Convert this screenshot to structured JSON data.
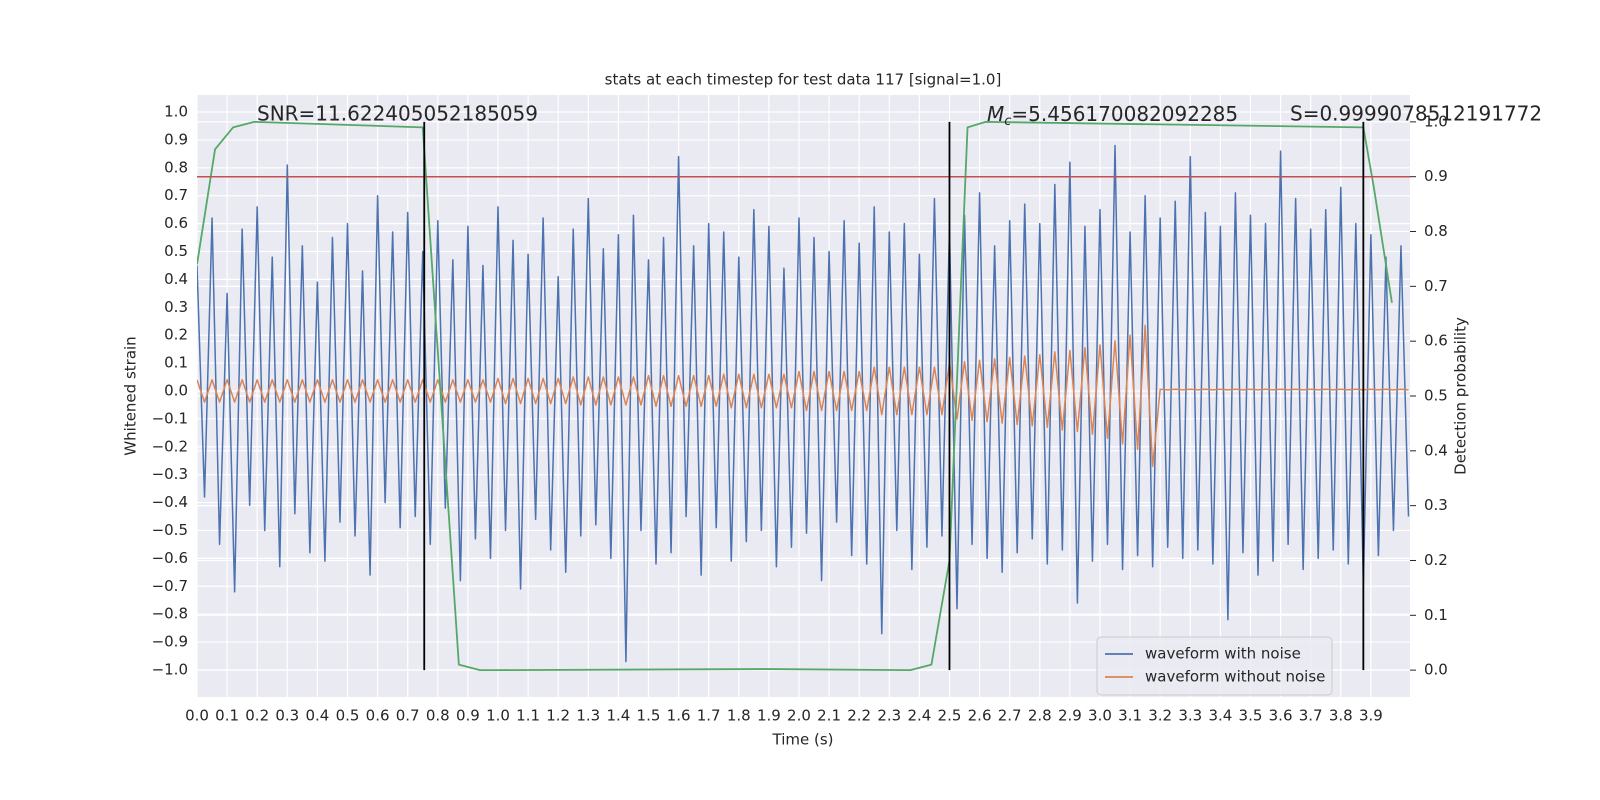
{
  "chart_data": {
    "type": "line",
    "title": "stats at each timestep for test data 117 [signal=1.0]",
    "x_label": "Time (s)",
    "y_label": "Whitened strain",
    "y2_label": "Detection probability",
    "annotations": [
      {
        "text": "SNR=11.622405052185059"
      },
      {
        "symbol": "M",
        "subscript": "c",
        "text": "=5.456170082092285"
      },
      {
        "text": "S=0.9999078512191772"
      }
    ],
    "xlim": [
      0,
      4.03
    ],
    "ylim": [
      -1.097,
      1.061
    ],
    "y2lim": [
      -0.049,
      1.049
    ],
    "xticks": [
      {
        "value": 0,
        "label": "0.0"
      },
      {
        "value": 0.1,
        "label": "0.1"
      },
      {
        "value": 0.2,
        "label": "0.2"
      },
      {
        "value": 0.3,
        "label": "0.3"
      },
      {
        "value": 0.4,
        "label": "0.4"
      },
      {
        "value": 0.5,
        "label": "0.5"
      },
      {
        "value": 0.6,
        "label": "0.6"
      },
      {
        "value": 0.7,
        "label": "0.7"
      },
      {
        "value": 0.8,
        "label": "0.8"
      },
      {
        "value": 0.9,
        "label": "0.9"
      },
      {
        "value": 1,
        "label": "1.0"
      },
      {
        "value": 1.1,
        "label": "1.1"
      },
      {
        "value": 1.2,
        "label": "1.2"
      },
      {
        "value": 1.3,
        "label": "1.3"
      },
      {
        "value": 1.4,
        "label": "1.4"
      },
      {
        "value": 1.5,
        "label": "1.5"
      },
      {
        "value": 1.6,
        "label": "1.6"
      },
      {
        "value": 1.7,
        "label": "1.7"
      },
      {
        "value": 1.8,
        "label": "1.8"
      },
      {
        "value": 1.9,
        "label": "1.9"
      },
      {
        "value": 2,
        "label": "2.0"
      },
      {
        "value": 2.1,
        "label": "2.1"
      },
      {
        "value": 2.2,
        "label": "2.2"
      },
      {
        "value": 2.3,
        "label": "2.3"
      },
      {
        "value": 2.4,
        "label": "2.4"
      },
      {
        "value": 2.5,
        "label": "2.5"
      },
      {
        "value": 2.6,
        "label": "2.6"
      },
      {
        "value": 2.7,
        "label": "2.7"
      },
      {
        "value": 2.8,
        "label": "2.8"
      },
      {
        "value": 2.9,
        "label": "2.9"
      },
      {
        "value": 3,
        "label": "3.0"
      },
      {
        "value": 3.1,
        "label": "3.1"
      },
      {
        "value": 3.2,
        "label": "3.2"
      },
      {
        "value": 3.3,
        "label": "3.3"
      },
      {
        "value": 3.4,
        "label": "3.4"
      },
      {
        "value": 3.5,
        "label": "3.5"
      },
      {
        "value": 3.6,
        "label": "3.6"
      },
      {
        "value": 3.7,
        "label": "3.7"
      },
      {
        "value": 3.8,
        "label": "3.8"
      },
      {
        "value": 3.9,
        "label": "3.9"
      }
    ],
    "yticks": [
      {
        "value": -1,
        "label": "−1.0"
      },
      {
        "value": -0.9,
        "label": "−0.9"
      },
      {
        "value": -0.8,
        "label": "−0.8"
      },
      {
        "value": -0.7,
        "label": "−0.7"
      },
      {
        "value": -0.6,
        "label": "−0.6"
      },
      {
        "value": -0.5,
        "label": "−0.5"
      },
      {
        "value": -0.4,
        "label": "−0.4"
      },
      {
        "value": -0.3,
        "label": "−0.3"
      },
      {
        "value": -0.2,
        "label": "−0.2"
      },
      {
        "value": -0.1,
        "label": "−0.1"
      },
      {
        "value": 0,
        "label": "0.0"
      },
      {
        "value": 0.1,
        "label": "0.1"
      },
      {
        "value": 0.2,
        "label": "0.2"
      },
      {
        "value": 0.3,
        "label": "0.3"
      },
      {
        "value": 0.4,
        "label": "0.4"
      },
      {
        "value": 0.5,
        "label": "0.5"
      },
      {
        "value": 0.6,
        "label": "0.6"
      },
      {
        "value": 0.7,
        "label": "0.7"
      },
      {
        "value": 0.8,
        "label": "0.8"
      },
      {
        "value": 0.9,
        "label": "0.9"
      },
      {
        "value": 1,
        "label": "1.0"
      }
    ],
    "y2ticks": [
      {
        "value": 0,
        "label": "0.0"
      },
      {
        "value": 0.1,
        "label": "0.1"
      },
      {
        "value": 0.2,
        "label": "0.2"
      },
      {
        "value": 0.3,
        "label": "0.3"
      },
      {
        "value": 0.4,
        "label": "0.4"
      },
      {
        "value": 0.5,
        "label": "0.5"
      },
      {
        "value": 0.6,
        "label": "0.6"
      },
      {
        "value": 0.7,
        "label": "0.7"
      },
      {
        "value": 0.8,
        "label": "0.8"
      },
      {
        "value": 0.9,
        "label": "0.9"
      },
      {
        "value": 1,
        "label": "1.0"
      }
    ],
    "grid": true,
    "legend": "lower right",
    "x": [
      0,
      0.025,
      0.05,
      0.075,
      0.1,
      0.125,
      0.15,
      0.175,
      0.2,
      0.225,
      0.25,
      0.275,
      0.3,
      0.325,
      0.35,
      0.375,
      0.4,
      0.425,
      0.45,
      0.475,
      0.5,
      0.525,
      0.55,
      0.575,
      0.6,
      0.625,
      0.65,
      0.675,
      0.7,
      0.725,
      0.75,
      0.775,
      0.8,
      0.825,
      0.85,
      0.875,
      0.9,
      0.925,
      0.95,
      0.975,
      1,
      1.025,
      1.05,
      1.075,
      1.1,
      1.125,
      1.15,
      1.175,
      1.2,
      1.225,
      1.25,
      1.275,
      1.3,
      1.325,
      1.35,
      1.375,
      1.4,
      1.425,
      1.45,
      1.475,
      1.5,
      1.525,
      1.55,
      1.575,
      1.6,
      1.625,
      1.65,
      1.675,
      1.7,
      1.725,
      1.75,
      1.775,
      1.8,
      1.825,
      1.85,
      1.875,
      1.9,
      1.925,
      1.95,
      1.975,
      2,
      2.025,
      2.05,
      2.075,
      2.1,
      2.125,
      2.15,
      2.175,
      2.2,
      2.225,
      2.25,
      2.275,
      2.3,
      2.325,
      2.35,
      2.375,
      2.4,
      2.425,
      2.45,
      2.475,
      2.5,
      2.525,
      2.55,
      2.575,
      2.6,
      2.625,
      2.65,
      2.675,
      2.7,
      2.725,
      2.75,
      2.775,
      2.8,
      2.825,
      2.85,
      2.875,
      2.9,
      2.925,
      2.95,
      2.975,
      3,
      3.025,
      3.05,
      3.075,
      3.1,
      3.125,
      3.15,
      3.175,
      3.2,
      3.225,
      3.25,
      3.275,
      3.3,
      3.325,
      3.35,
      3.375,
      3.4,
      3.425,
      3.45,
      3.475,
      3.5,
      3.525,
      3.55,
      3.575,
      3.6,
      3.625,
      3.65,
      3.675,
      3.7,
      3.725,
      3.75,
      3.775,
      3.8,
      3.825,
      3.85,
      3.875,
      3.9,
      3.925,
      3.95,
      3.975,
      4,
      4.025
    ],
    "series": [
      {
        "name": "waveform with noise",
        "color": "#4c72b0",
        "values": [
          0.45,
          -0.38,
          0.62,
          -0.55,
          0.35,
          -0.72,
          0.58,
          -0.41,
          0.66,
          -0.5,
          0.48,
          -0.63,
          0.81,
          -0.44,
          0.52,
          -0.58,
          0.39,
          -0.61,
          0.55,
          -0.47,
          0.6,
          -0.52,
          0.43,
          -0.66,
          0.7,
          -0.4,
          0.57,
          -0.49,
          0.64,
          -0.45,
          0.5,
          -0.55,
          0.61,
          -0.42,
          0.47,
          -0.68,
          0.59,
          -0.53,
          0.45,
          -0.6,
          0.66,
          -0.5,
          0.54,
          -0.71,
          0.49,
          -0.46,
          0.62,
          -0.57,
          0.41,
          -0.65,
          0.58,
          -0.52,
          0.69,
          -0.48,
          0.51,
          -0.6,
          0.56,
          -0.97,
          0.63,
          -0.5,
          0.47,
          -0.62,
          0.55,
          -0.58,
          0.84,
          -0.45,
          0.52,
          -0.66,
          0.6,
          -0.49,
          0.57,
          -0.61,
          0.48,
          -0.54,
          0.65,
          -0.5,
          0.59,
          -0.63,
          0.44,
          -0.56,
          0.62,
          -0.51,
          0.55,
          -0.68,
          0.5,
          -0.47,
          0.61,
          -0.59,
          0.53,
          -0.62,
          0.66,
          -0.87,
          0.57,
          -0.5,
          0.6,
          -0.64,
          0.49,
          -0.56,
          0.69,
          -0.52,
          0.58,
          -0.78,
          0.63,
          -0.55,
          0.71,
          -0.6,
          0.52,
          -0.65,
          0.61,
          -0.58,
          0.67,
          -0.53,
          0.6,
          -0.62,
          0.74,
          -0.57,
          0.82,
          -0.76,
          0.59,
          -0.61,
          0.65,
          -0.55,
          0.88,
          -0.64,
          0.57,
          -0.59,
          0.7,
          -0.63,
          0.62,
          -0.56,
          0.68,
          -0.6,
          0.84,
          -0.57,
          0.64,
          -0.62,
          0.59,
          -0.82,
          0.71,
          -0.58,
          0.63,
          -0.66,
          0.6,
          -0.61,
          0.86,
          -0.55,
          0.69,
          -0.64,
          0.58,
          -0.6,
          0.65,
          -0.57,
          0.73,
          -0.62,
          0.6,
          -0.69,
          0.56,
          -0.59,
          0.48,
          -0.5,
          0.52,
          -0.45
        ]
      },
      {
        "name": "waveform without noise",
        "color": "#dd8452",
        "values": [
          0.04,
          -0.04,
          0.04,
          -0.04,
          0.04,
          -0.04,
          0.04,
          -0.04,
          0.04,
          -0.04,
          0.04,
          -0.04,
          0.04,
          -0.04,
          0.04,
          -0.04,
          0.04,
          -0.04,
          0.04,
          -0.04,
          0.04,
          -0.04,
          0.04,
          -0.04,
          0.04,
          -0.04,
          0.04,
          -0.04,
          0.04,
          -0.04,
          0.04,
          -0.04,
          0.04,
          -0.04,
          0.04,
          -0.04,
          0.04,
          -0.04,
          0.04,
          -0.04,
          0.045,
          -0.045,
          0.045,
          -0.045,
          0.045,
          -0.045,
          0.045,
          -0.045,
          0.045,
          -0.045,
          0.05,
          -0.05,
          0.05,
          -0.05,
          0.05,
          -0.05,
          0.05,
          -0.05,
          0.05,
          -0.05,
          0.055,
          -0.055,
          0.055,
          -0.055,
          0.055,
          -0.055,
          0.055,
          -0.055,
          0.055,
          -0.055,
          0.06,
          -0.06,
          0.06,
          -0.06,
          0.06,
          -0.06,
          0.06,
          -0.06,
          0.06,
          -0.06,
          0.07,
          -0.07,
          0.07,
          -0.07,
          0.07,
          -0.07,
          0.07,
          -0.07,
          0.07,
          -0.07,
          0.085,
          -0.085,
          0.085,
          -0.085,
          0.085,
          -0.085,
          0.085,
          -0.085,
          0.085,
          -0.085,
          0.1,
          -0.1,
          0.105,
          -0.105,
          0.11,
          -0.11,
          0.115,
          -0.115,
          0.12,
          -0.12,
          0.125,
          -0.125,
          0.13,
          -0.13,
          0.14,
          -0.14,
          0.145,
          -0.145,
          0.155,
          -0.155,
          0.165,
          -0.17,
          0.18,
          -0.19,
          0.2,
          -0.21,
          0.235,
          -0.27,
          0.006,
          0.004,
          0.006,
          0.004,
          0.006,
          0.004,
          0.006,
          0.004,
          0.006,
          0.004,
          0.006,
          0.004,
          0.006,
          0.004,
          0.006,
          0.004,
          0.006,
          0.004,
          0.006,
          0.004,
          0.006,
          0.004,
          0.006,
          0.004,
          0.006,
          0.004,
          0.006,
          0.004,
          0.006,
          0.004,
          0.006,
          0.004,
          0.006,
          0.004
        ]
      },
      {
        "color": "#55a868",
        "axis": "y2",
        "x": [
          0,
          0.06,
          0.12,
          0.19,
          0.75,
          0.87,
          0.94,
          1.0,
          1.9,
          2.37,
          2.44,
          2.5,
          2.56,
          2.62,
          3.875,
          3.91,
          3.97
        ],
        "values": [
          0.74,
          0.95,
          0.99,
          1.0,
          0.99,
          0.01,
          0.0,
          0.0,
          0.002,
          0.0,
          0.01,
          0.2,
          0.99,
          1.0,
          0.99,
          0.88,
          0.67
        ]
      }
    ],
    "threshold": {
      "value": 0.9,
      "axis": "y2",
      "color": "#c44e52"
    },
    "vlines": {
      "values": [
        0.755,
        2.5,
        3.875
      ],
      "color": "#000000"
    }
  }
}
